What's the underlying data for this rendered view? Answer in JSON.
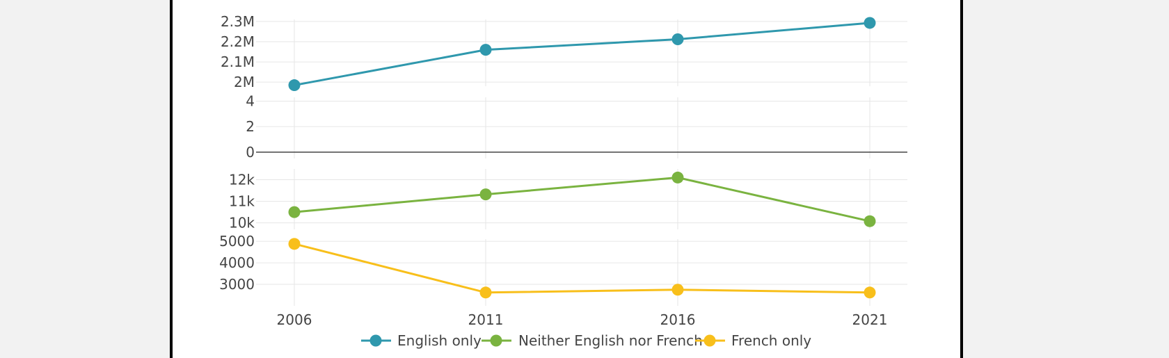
{
  "chart_data": {
    "type": "line",
    "x": [
      "2006",
      "2011",
      "2016",
      "2021"
    ],
    "grid": true,
    "legend_position": "bottom",
    "panels": [
      {
        "series_name": "English only",
        "color": "#2f98ad",
        "ylim": [
          1980000,
          2310000
        ],
        "yticks": [
          2000000,
          2100000,
          2200000,
          2300000
        ],
        "ytick_labels": [
          "2M",
          "2.1M",
          "2.2M",
          "2.3M"
        ],
        "values": [
          1985000,
          2160000,
          2212000,
          2293000
        ]
      },
      {
        "series_name": "",
        "color": "#444444",
        "ylim": [
          -0.5,
          4.3
        ],
        "yticks": [
          0,
          2,
          4
        ],
        "ytick_labels": [
          "0",
          "2",
          "4"
        ],
        "zero_line": true,
        "values": []
      },
      {
        "series_name": "Neither English nor French",
        "color": "#7ab340",
        "ylim": [
          9700,
          12500
        ],
        "yticks": [
          10000,
          11000,
          12000
        ],
        "ytick_labels": [
          "10k",
          "11k",
          "12k"
        ],
        "values": [
          10500,
          11320,
          12100,
          10080
        ]
      },
      {
        "series_name": "French only",
        "color": "#f8bf1b",
        "ylim": [
          2000,
          5100
        ],
        "yticks": [
          3000,
          4000,
          5000
        ],
        "ytick_labels": [
          "3000",
          "4000",
          "5000"
        ],
        "values": [
          4880,
          2620,
          2750,
          2620
        ]
      }
    ],
    "legend": [
      {
        "name": "English only",
        "color": "#2f98ad"
      },
      {
        "name": "Neither English nor French",
        "color": "#7ab340"
      },
      {
        "name": "French only",
        "color": "#f8bf1b"
      }
    ]
  }
}
